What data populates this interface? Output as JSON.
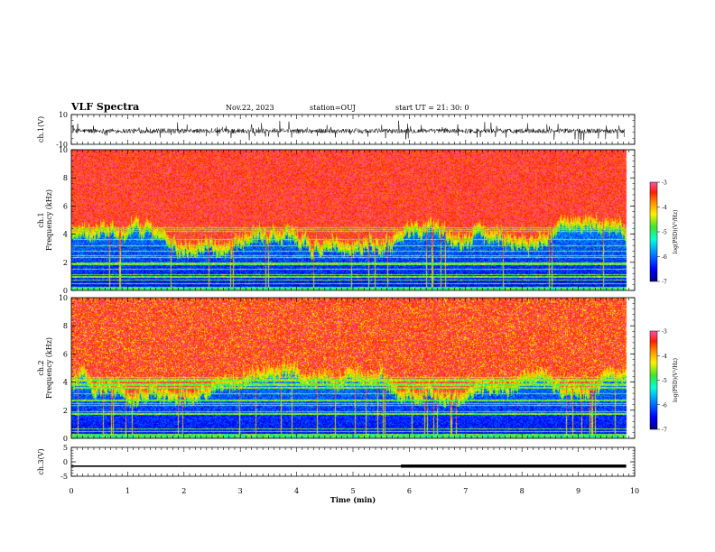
{
  "header": {
    "title": "VLF Spectra",
    "date": "Nov.22, 2023",
    "station": "station=OUJ",
    "start": "start  UT =  21: 30: 0"
  },
  "chart_data": [
    {
      "type": "line",
      "id": "ch1-waveform",
      "ylabel": "ch.1(V)",
      "ylim": [
        -10,
        10
      ],
      "yticks": [
        "10",
        "-10"
      ],
      "xlim": [
        0,
        10
      ],
      "color": "#000000"
    },
    {
      "type": "heatmap",
      "id": "ch1-spectrogram",
      "ylabel": "ch.1\nFrequency (kHz)",
      "ylim": [
        0,
        10
      ],
      "yticks": [
        "0",
        "2",
        "4",
        "6",
        "8",
        "10"
      ],
      "xlim": [
        0,
        10
      ],
      "data_end_min": 9.85,
      "colorbar": {
        "label": "log(PSD)(V²/Hz)",
        "range": [
          -7,
          -3
        ],
        "ticks": [
          "-3",
          "-4",
          "-5",
          "-6",
          "-7"
        ]
      }
    },
    {
      "type": "heatmap",
      "id": "ch2-spectrogram",
      "ylabel": "ch.2\nFrequency (kHz)",
      "ylim": [
        0,
        10
      ],
      "yticks": [
        "0",
        "2",
        "4",
        "6",
        "8",
        "10"
      ],
      "xlim": [
        0,
        10
      ],
      "data_end_min": 9.85,
      "colorbar": {
        "label": "log(PSD)(V²/Hz)",
        "range": [
          -7,
          -3
        ],
        "ticks": [
          "-3",
          "-4",
          "-5",
          "-6",
          "-7"
        ]
      }
    },
    {
      "type": "line",
      "id": "ch3-signal",
      "ylabel": "ch.3(V)",
      "ylim": [
        -5,
        5
      ],
      "yticks": [
        "5",
        "0",
        "-5"
      ],
      "xlim": [
        0,
        10
      ],
      "segments": [
        {
          "x": [
            0,
            5.85
          ],
          "y": -1.5
        },
        {
          "x": [
            5.85,
            9.85
          ],
          "y": -1.5,
          "thick": true
        }
      ]
    }
  ],
  "xaxis": {
    "label": "Time (min)",
    "ticks": [
      "0",
      "1",
      "2",
      "3",
      "4",
      "5",
      "6",
      "7",
      "8",
      "9",
      "10"
    ]
  }
}
